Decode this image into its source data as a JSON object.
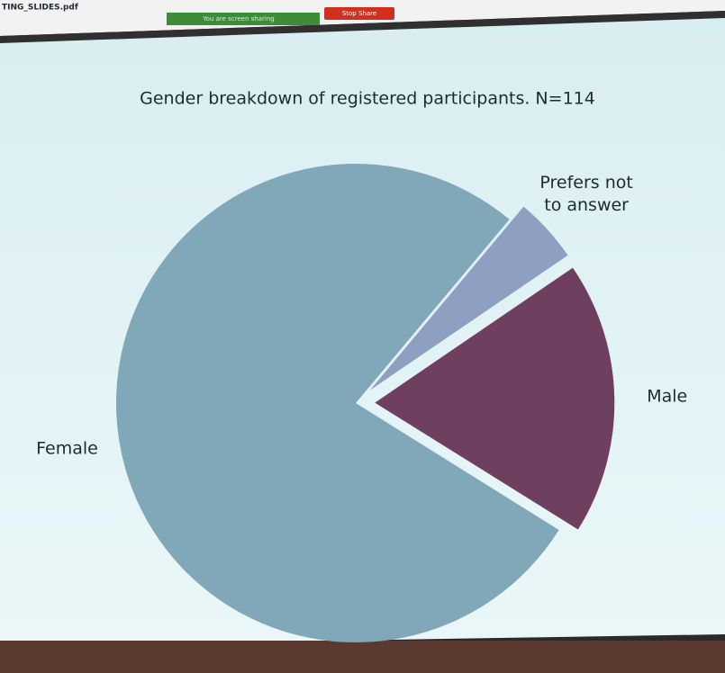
{
  "screen": {
    "file_name": "TING_SLIDES.pdf",
    "sharing_notice": "You are screen sharing",
    "stop_button": "Stop Share"
  },
  "chart_data": {
    "type": "pie",
    "title": "Gender breakdown of registered participants.  N=114",
    "categories": [
      "Male",
      "Prefers not to answer",
      "Female"
    ],
    "values": [
      21,
      5,
      88
    ],
    "colors": [
      "#6f3f5f",
      "#8e9fc2",
      "#80a8b8"
    ],
    "explode": [
      0.08,
      0.08,
      0
    ]
  }
}
